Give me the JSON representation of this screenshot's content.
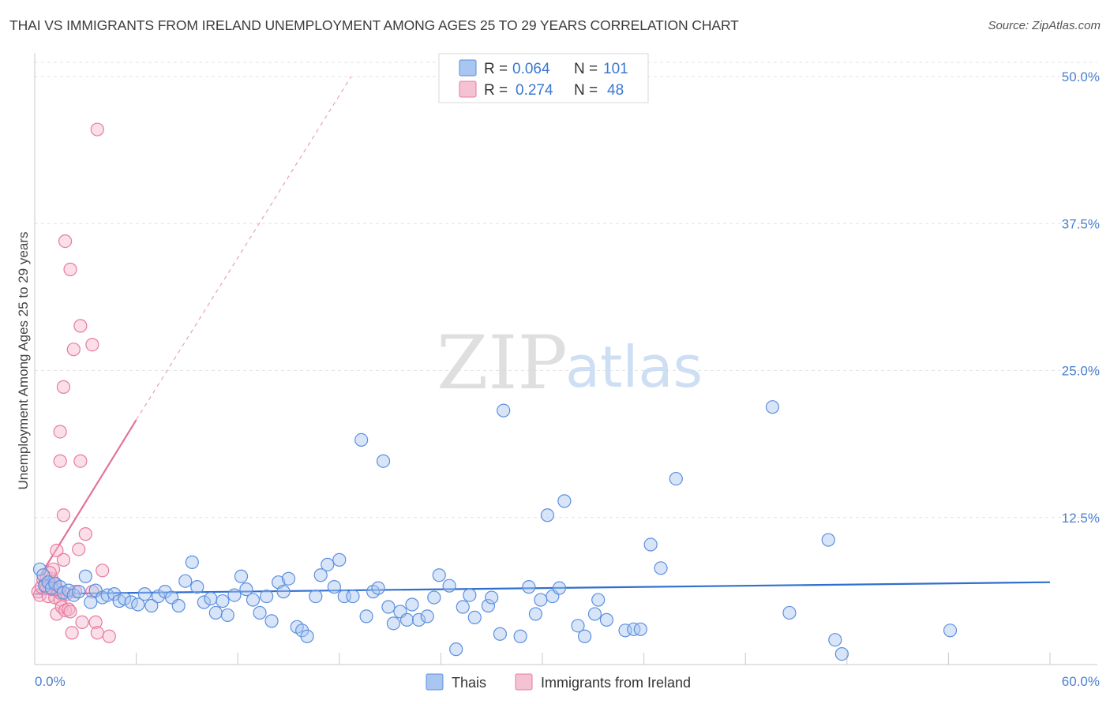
{
  "title": "THAI VS IMMIGRANTS FROM IRELAND UNEMPLOYMENT AMONG AGES 25 TO 29 YEARS CORRELATION CHART",
  "source": "Source: ZipAtlas.com",
  "watermark": {
    "zip": "ZIP",
    "atlas": "atlas"
  },
  "colors": {
    "blue": "#5b8fe0",
    "blue_fill": "#a8c6f0",
    "pink": "#e87aa0",
    "pink_fill": "#f5b8cc",
    "blue_line": "#2f6fce",
    "pink_line": "#e3729b",
    "tick": "#4a7fd0"
  },
  "legend": {
    "rows": [
      {
        "r_label": "R =",
        "r_value": "0.064",
        "n_label": "N =",
        "n_value": "101"
      },
      {
        "r_label": "R =",
        "r_value": "0.274",
        "n_label": "N =",
        "n_value": "48"
      }
    ]
  },
  "bottom_legend": [
    "Thais",
    "Immigrants from Ireland"
  ],
  "chart_data": {
    "type": "scatter",
    "title": "THAI VS IMMIGRANTS FROM IRELAND UNEMPLOYMENT AMONG AGES 25 TO 29 YEARS CORRELATION CHART",
    "xlabel": "",
    "ylabel": "Unemployment Among Ages 25 to 29 years",
    "xlim": [
      0,
      60
    ],
    "ylim": [
      0,
      50
    ],
    "x_tick_labels": [
      "0.0%",
      "60.0%"
    ],
    "y_ticks": [
      12.5,
      25.0,
      37.5,
      50.0
    ],
    "y_tick_labels": [
      "12.5%",
      "25.0%",
      "37.5%",
      "50.0%"
    ],
    "grid": true,
    "series": [
      {
        "name": "Thais",
        "R": 0.064,
        "N": 101,
        "trend": {
          "x": [
            0,
            60
          ],
          "y": [
            6.0,
            7.0
          ]
        },
        "points": [
          [
            0.3,
            8.1
          ],
          [
            0.5,
            7.6
          ],
          [
            0.6,
            6.7
          ],
          [
            0.8,
            7.0
          ],
          [
            1.0,
            6.5
          ],
          [
            1.2,
            6.9
          ],
          [
            1.5,
            6.6
          ],
          [
            1.7,
            6.1
          ],
          [
            2.0,
            6.3
          ],
          [
            2.3,
            5.9
          ],
          [
            2.6,
            6.2
          ],
          [
            3.0,
            7.5
          ],
          [
            3.3,
            5.3
          ],
          [
            3.6,
            6.3
          ],
          [
            4.0,
            5.7
          ],
          [
            4.3,
            5.9
          ],
          [
            4.7,
            6.0
          ],
          [
            5.0,
            5.4
          ],
          [
            5.3,
            5.6
          ],
          [
            5.7,
            5.3
          ],
          [
            6.1,
            5.1
          ],
          [
            6.5,
            6.0
          ],
          [
            6.9,
            5.0
          ],
          [
            7.3,
            5.8
          ],
          [
            7.7,
            6.2
          ],
          [
            8.1,
            5.7
          ],
          [
            8.5,
            5.0
          ],
          [
            8.9,
            7.1
          ],
          [
            9.3,
            8.7
          ],
          [
            9.6,
            6.6
          ],
          [
            10.0,
            5.3
          ],
          [
            10.4,
            5.6
          ],
          [
            10.7,
            4.4
          ],
          [
            11.1,
            5.4
          ],
          [
            11.4,
            4.2
          ],
          [
            11.8,
            5.9
          ],
          [
            12.2,
            7.5
          ],
          [
            12.5,
            6.4
          ],
          [
            12.9,
            5.5
          ],
          [
            13.3,
            4.4
          ],
          [
            13.7,
            5.8
          ],
          [
            14.0,
            3.7
          ],
          [
            14.4,
            7.0
          ],
          [
            14.7,
            6.2
          ],
          [
            15.0,
            7.3
          ],
          [
            15.5,
            3.2
          ],
          [
            15.8,
            2.9
          ],
          [
            16.1,
            2.4
          ],
          [
            16.6,
            5.8
          ],
          [
            16.9,
            7.6
          ],
          [
            17.3,
            8.5
          ],
          [
            17.7,
            6.6
          ],
          [
            18.0,
            8.9
          ],
          [
            18.3,
            5.8
          ],
          [
            18.8,
            5.8
          ],
          [
            19.3,
            19.1
          ],
          [
            19.6,
            4.1
          ],
          [
            20.0,
            6.2
          ],
          [
            20.3,
            6.5
          ],
          [
            20.6,
            17.3
          ],
          [
            20.9,
            4.9
          ],
          [
            21.2,
            3.5
          ],
          [
            21.6,
            4.5
          ],
          [
            22.0,
            3.8
          ],
          [
            22.3,
            5.1
          ],
          [
            22.7,
            3.8
          ],
          [
            23.2,
            4.1
          ],
          [
            23.6,
            5.7
          ],
          [
            23.9,
            7.6
          ],
          [
            24.5,
            6.7
          ],
          [
            24.9,
            1.3
          ],
          [
            25.3,
            4.9
          ],
          [
            25.7,
            5.9
          ],
          [
            26.0,
            4.0
          ],
          [
            26.8,
            5.0
          ],
          [
            27.0,
            5.7
          ],
          [
            27.5,
            2.6
          ],
          [
            27.7,
            21.6
          ],
          [
            28.7,
            2.4
          ],
          [
            29.2,
            6.6
          ],
          [
            29.6,
            4.3
          ],
          [
            29.9,
            5.5
          ],
          [
            30.3,
            12.7
          ],
          [
            30.6,
            5.8
          ],
          [
            31.0,
            6.5
          ],
          [
            31.3,
            13.9
          ],
          [
            32.1,
            3.3
          ],
          [
            32.5,
            2.4
          ],
          [
            33.1,
            4.3
          ],
          [
            33.3,
            5.5
          ],
          [
            33.8,
            3.8
          ],
          [
            34.9,
            2.9
          ],
          [
            35.4,
            3.0
          ],
          [
            35.8,
            3.0
          ],
          [
            36.4,
            10.2
          ],
          [
            37.0,
            8.2
          ],
          [
            37.9,
            15.8
          ],
          [
            43.6,
            21.9
          ],
          [
            44.6,
            4.4
          ],
          [
            46.9,
            10.6
          ],
          [
            47.3,
            2.1
          ],
          [
            47.7,
            0.9
          ],
          [
            54.1,
            2.9
          ]
        ]
      },
      {
        "name": "Immigrants from Ireland",
        "R": 0.274,
        "N": 48,
        "trend": {
          "x": [
            0.3,
            6.0
          ],
          "y": [
            7.5,
            20.8
          ],
          "dashed_to": {
            "x": 18.7,
            "y": 50.0
          }
        },
        "points": [
          [
            0.2,
            6.2
          ],
          [
            0.3,
            5.9
          ],
          [
            0.4,
            6.6
          ],
          [
            0.5,
            7.2
          ],
          [
            0.6,
            6.8
          ],
          [
            0.7,
            7.4
          ],
          [
            0.8,
            5.8
          ],
          [
            0.9,
            6.9
          ],
          [
            1.0,
            7.3
          ],
          [
            1.1,
            8.1
          ],
          [
            1.2,
            5.7
          ],
          [
            1.3,
            4.3
          ],
          [
            1.3,
            9.7
          ],
          [
            1.4,
            6.3
          ],
          [
            1.5,
            5.5
          ],
          [
            1.6,
            4.9
          ],
          [
            1.7,
            8.9
          ],
          [
            1.8,
            4.6
          ],
          [
            1.0,
            6.4
          ],
          [
            0.9,
            7.8
          ],
          [
            1.2,
            6.8
          ],
          [
            1.5,
            6.1
          ],
          [
            1.3,
            6.4
          ],
          [
            1.9,
            6.0
          ],
          [
            2.0,
            4.7
          ],
          [
            2.1,
            4.5
          ],
          [
            2.2,
            2.7
          ],
          [
            2.4,
            6.2
          ],
          [
            2.6,
            9.8
          ],
          [
            2.8,
            3.6
          ],
          [
            3.0,
            11.1
          ],
          [
            3.4,
            6.2
          ],
          [
            3.6,
            3.6
          ],
          [
            3.7,
            2.7
          ],
          [
            4.0,
            8.0
          ],
          [
            4.4,
            2.4
          ],
          [
            1.5,
            19.8
          ],
          [
            1.5,
            17.3
          ],
          [
            1.7,
            23.6
          ],
          [
            1.8,
            36.0
          ],
          [
            2.1,
            33.6
          ],
          [
            2.3,
            26.8
          ],
          [
            2.7,
            28.8
          ],
          [
            2.7,
            17.3
          ],
          [
            3.4,
            27.2
          ],
          [
            3.7,
            45.5
          ],
          [
            1.7,
            12.7
          ],
          [
            0.7,
            6.5
          ]
        ]
      }
    ]
  }
}
